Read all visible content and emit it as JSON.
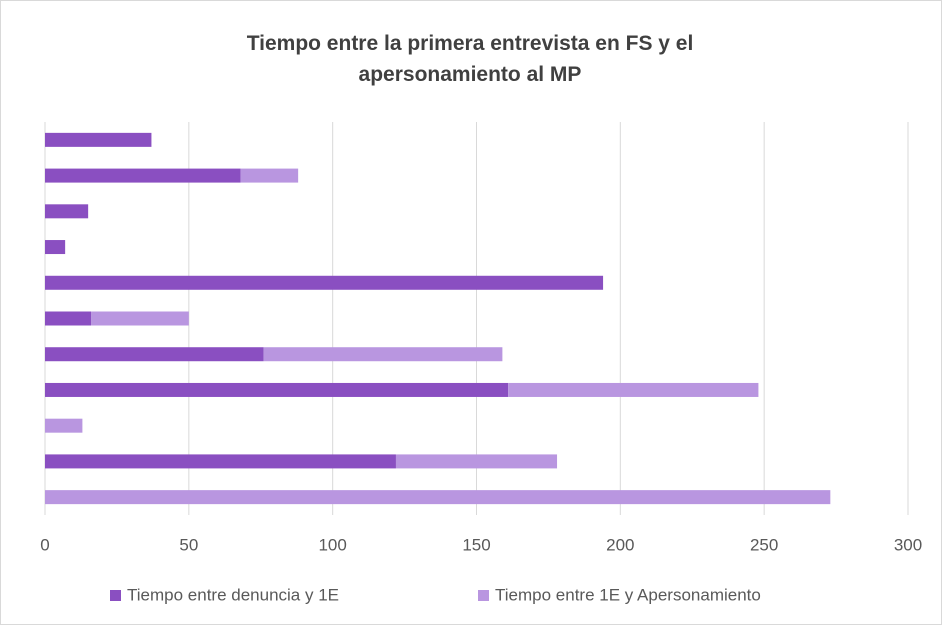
{
  "chart_data": {
    "type": "stacked-barh",
    "title": "Tiempo entre la primera entrevista en FS y el apersonamiento al MP",
    "categories": [
      null,
      null,
      null,
      null,
      null,
      null,
      null,
      null,
      null,
      null,
      null
    ],
    "series": [
      {
        "name": "Tiempo entre denuncia y 1E",
        "color": "#8a4fc1",
        "values": [
          37,
          68,
          15,
          7,
          194,
          16,
          76,
          161,
          0,
          122,
          0
        ]
      },
      {
        "name": "Tiempo entre 1E y Apersonamiento",
        "color": "#b996e0",
        "values": [
          0,
          20,
          0,
          0,
          0,
          34,
          83,
          87,
          13,
          56,
          273
        ]
      }
    ],
    "xlim": [
      0,
      300
    ],
    "xticks": [
      0,
      50,
      100,
      150,
      200,
      250,
      300
    ],
    "grid": true,
    "legend": "bottom"
  }
}
